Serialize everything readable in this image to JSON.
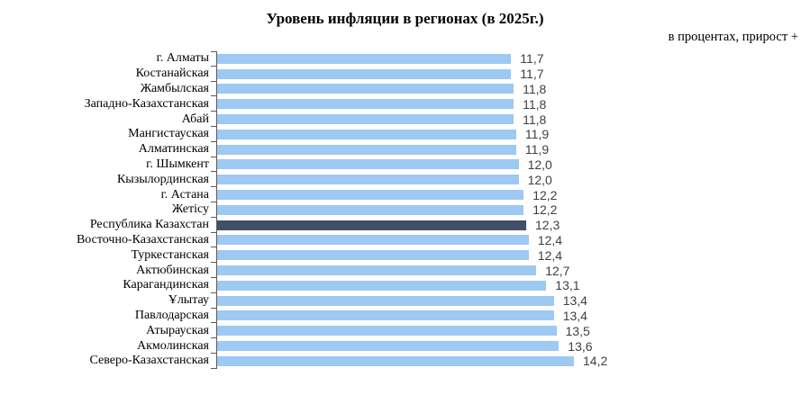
{
  "chart": {
    "title": "Уровень инфляции в регионах (в 2025г.)",
    "subtitle": "в процентах, прирост +",
    "colors": {
      "bar": "#9DC9F2",
      "highlight_bar": "#415069",
      "axis": "#595959",
      "value_text": "#3F3F3F"
    }
  },
  "chart_data": {
    "type": "bar",
    "orientation": "horizontal",
    "title": "Уровень инфляции в регионах (в 2025г.)",
    "subtitle": "в процентах, прирост +",
    "categories": [
      "г. Алматы",
      "Костанайская",
      "Жамбылская",
      "Западно-Казахстанская",
      "Абай",
      "Мангистауская",
      "Алматинская",
      "г. Шымкент",
      "Кызылординская",
      "г. Астана",
      "Жетісу",
      "Республика Казахстан",
      "Восточно-Казахстанская",
      "Туркестанская",
      "Актюбинская",
      "Карагандинская",
      "Ұлытау",
      "Павлодарская",
      "Атырауская",
      "Акмолинская",
      "Северо-Казахстанская"
    ],
    "values": [
      11.7,
      11.7,
      11.8,
      11.8,
      11.8,
      11.9,
      11.9,
      12.0,
      12.0,
      12.2,
      12.2,
      12.3,
      12.4,
      12.4,
      12.7,
      13.1,
      13.4,
      13.4,
      13.5,
      13.6,
      14.2
    ],
    "value_labels": [
      "11,7",
      "11,7",
      "11,8",
      "11,8",
      "11,8",
      "11,9",
      "11,9",
      "12,0",
      "12,0",
      "12,2",
      "12,2",
      "12,3",
      "12,4",
      "12,4",
      "12,7",
      "13,1",
      "13,4",
      "13,4",
      "13,5",
      "13,6",
      "14,2"
    ],
    "highlight_index": 11,
    "highlight_category": "Республика Казахстан",
    "xlim": [
      0,
      14.2
    ],
    "grid": false,
    "legend": false,
    "value_labels_shown": true
  }
}
